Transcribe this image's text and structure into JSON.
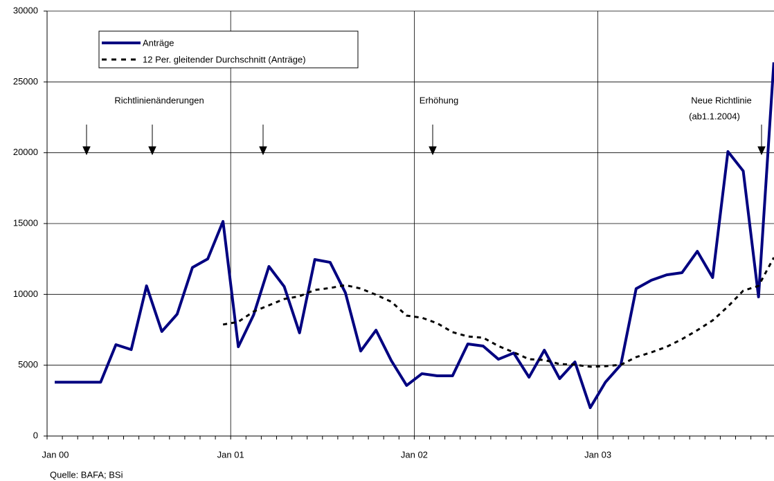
{
  "chart_data": {
    "type": "line",
    "categories": [
      "Jan 00",
      null,
      null,
      null,
      null,
      null,
      null,
      null,
      null,
      null,
      null,
      null,
      "Jan 01",
      null,
      null,
      null,
      null,
      null,
      null,
      null,
      null,
      null,
      null,
      null,
      "Jan 02",
      null,
      null,
      null,
      null,
      null,
      null,
      null,
      null,
      null,
      null,
      null,
      "Jan 03",
      null,
      null,
      null,
      null,
      null,
      null,
      null,
      null,
      null,
      null,
      null
    ],
    "series": [
      {
        "name": "Anträge",
        "color": "#000080",
        "style": "solid",
        "values": [
          3800,
          3800,
          3800,
          3800,
          6450,
          6100,
          10600,
          7380,
          8600,
          11900,
          12500,
          15150,
          6300,
          8550,
          11970,
          10550,
          7280,
          12460,
          12260,
          10110,
          6000,
          7470,
          5320,
          3570,
          4400,
          4250,
          4250,
          6500,
          6350,
          5420,
          5860,
          4150,
          6060,
          4050,
          5230,
          2000,
          3810,
          5030,
          10400,
          11000,
          11380,
          11530,
          13040,
          11190,
          20080,
          18710,
          9820,
          26380
        ]
      },
      {
        "name": "12 Per. gleitender Durchschnitt (Anträge)",
        "color": "#000000",
        "style": "dashed",
        "values": [
          null,
          null,
          null,
          null,
          null,
          null,
          null,
          null,
          null,
          null,
          null,
          7870,
          8060,
          8790,
          9230,
          9670,
          9870,
          10310,
          10450,
          10650,
          10410,
          9970,
          9480,
          8500,
          8350,
          7960,
          7330,
          7030,
          6940,
          6350,
          5910,
          5420,
          5370,
          5080,
          5030,
          4890,
          4930,
          5030,
          5570,
          5910,
          6300,
          6840,
          7470,
          8160,
          9140,
          10260,
          10600,
          12600
        ]
      }
    ],
    "ylim": [
      0,
      30000
    ],
    "yticks": [
      0,
      5000,
      10000,
      15000,
      20000,
      25000,
      30000
    ],
    "grid": true,
    "annotations": [
      "Richtlinienänderungen",
      "Erhöhung",
      "Neue Richtlinie",
      "(ab1.1.2004)"
    ],
    "source": "Quelle: BAFA; BSi"
  }
}
